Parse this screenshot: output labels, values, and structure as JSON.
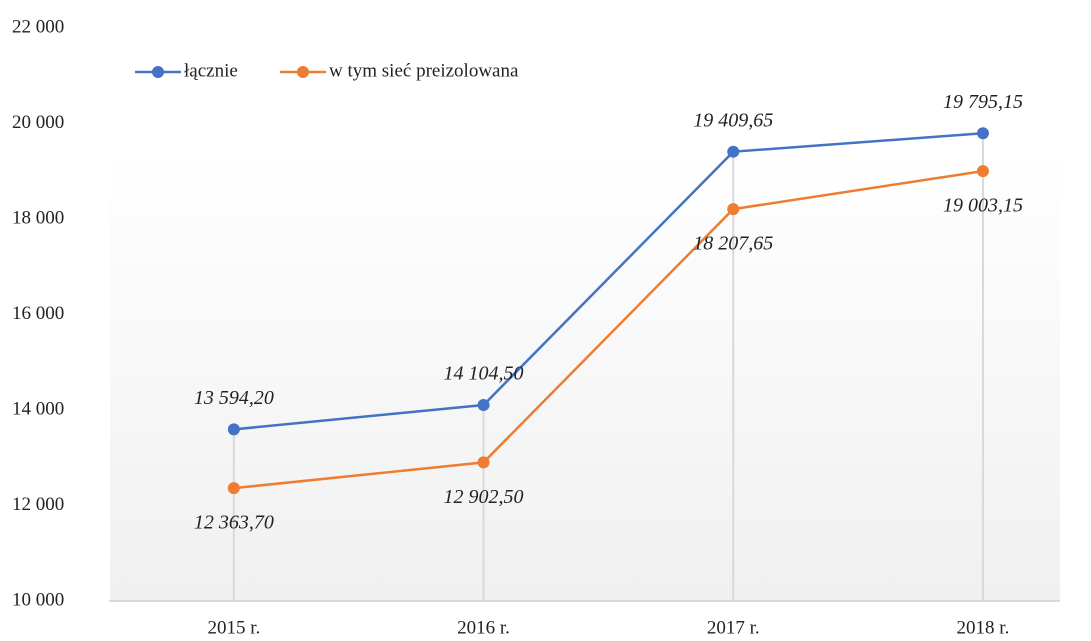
{
  "chart_data": {
    "type": "line",
    "categories": [
      "2015 r.",
      "2016 r.",
      "2017 r.",
      "2018 r."
    ],
    "series": [
      {
        "name": "łącznie",
        "color": "#4472c4",
        "values": [
          13594.2,
          14104.5,
          19409.65,
          19795.15
        ],
        "value_labels": [
          "13 594,20",
          "14 104,50",
          "19 409,65",
          "19 795,15"
        ]
      },
      {
        "name": "w tym sieć preizolowana",
        "color": "#ed7d31",
        "values": [
          12363.7,
          12902.5,
          18207.65,
          19003.15
        ],
        "value_labels": [
          "12 363,70",
          "12 902,50",
          "18 207,65",
          "19 003,15"
        ]
      }
    ],
    "ylim": [
      10000,
      22000
    ],
    "yticks": [
      {
        "value": 10000,
        "label": "10 000"
      },
      {
        "value": 12000,
        "label": "12 000"
      },
      {
        "value": 14000,
        "label": "14 000"
      },
      {
        "value": 16000,
        "label": "16 000"
      },
      {
        "value": 18000,
        "label": "18 000"
      },
      {
        "value": 20000,
        "label": "20 000"
      },
      {
        "value": 22000,
        "label": "22 000"
      }
    ],
    "grid": false,
    "legend": "top-left"
  }
}
